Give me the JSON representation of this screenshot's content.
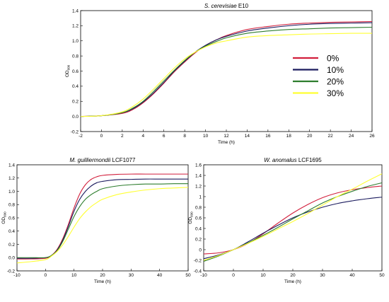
{
  "legend": [
    {
      "label": "0%",
      "color": "#d21f3c"
    },
    {
      "label": "10%",
      "color": "#1b1b5e"
    },
    {
      "label": "20%",
      "color": "#2e7d2e"
    },
    {
      "label": "30%",
      "color": "#ffff33"
    }
  ],
  "chart_data": [
    {
      "type": "line",
      "title": "E10",
      "title_species": "S. cerevisiae",
      "xlabel": "Time (h)",
      "ylabel_main": "OD",
      "ylabel_sub": "600",
      "xlim": [
        -2,
        26
      ],
      "ylim": [
        -0.2,
        1.4
      ],
      "xticks": [
        -2,
        0,
        2,
        4,
        6,
        8,
        10,
        12,
        14,
        16,
        18,
        20,
        22,
        24,
        26
      ],
      "yticks": [
        -0.2,
        0.0,
        0.2,
        0.4,
        0.6,
        0.8,
        1.0,
        1.2,
        1.4
      ],
      "ytick_labels": [
        "-0.2",
        "0.0",
        "0.2",
        "0.4",
        "0.6",
        "0.8",
        "1.0",
        "1.2",
        "1.4"
      ],
      "x": [
        -2,
        0,
        2,
        3,
        4,
        5,
        6,
        7,
        8,
        9,
        10,
        11,
        12,
        14,
        16,
        18,
        20,
        22,
        24,
        26
      ],
      "series": [
        {
          "color": "#d21f3c",
          "values": [
            0.0,
            0.01,
            0.04,
            0.09,
            0.18,
            0.3,
            0.44,
            0.59,
            0.72,
            0.84,
            0.94,
            1.01,
            1.07,
            1.15,
            1.19,
            1.22,
            1.235,
            1.245,
            1.25,
            1.255
          ]
        },
        {
          "color": "#1b1b5e",
          "values": [
            0.0,
            0.01,
            0.05,
            0.1,
            0.19,
            0.31,
            0.45,
            0.6,
            0.73,
            0.85,
            0.94,
            1.01,
            1.06,
            1.13,
            1.17,
            1.2,
            1.22,
            1.23,
            1.235,
            1.24
          ]
        },
        {
          "color": "#2e7d2e",
          "values": [
            0.0,
            0.01,
            0.05,
            0.11,
            0.2,
            0.33,
            0.47,
            0.61,
            0.74,
            0.85,
            0.93,
            0.99,
            1.04,
            1.1,
            1.13,
            1.15,
            1.16,
            1.17,
            1.175,
            1.18
          ]
        },
        {
          "color": "#ffff33",
          "values": [
            0.0,
            0.01,
            0.06,
            0.13,
            0.23,
            0.36,
            0.5,
            0.64,
            0.76,
            0.85,
            0.92,
            0.97,
            1.0,
            1.05,
            1.07,
            1.08,
            1.09,
            1.095,
            1.1,
            1.1
          ]
        }
      ]
    },
    {
      "type": "line",
      "title": "LCF1077",
      "title_species": "M. guilliermondii",
      "xlabel": "Time (h)",
      "ylabel_main": "OD",
      "ylabel_sub": "600",
      "xlim": [
        -10,
        50
      ],
      "ylim": [
        -0.2,
        1.4
      ],
      "xticks": [
        -10,
        0,
        10,
        20,
        30,
        40,
        50
      ],
      "yticks": [
        -0.2,
        0.0,
        0.2,
        0.4,
        0.6,
        0.8,
        1.0,
        1.2,
        1.4
      ],
      "ytick_labels": [
        "-0.2",
        "0.0",
        "0.2",
        "0.4",
        "0.6",
        "0.8",
        "1.0",
        "1.2",
        "1.4"
      ],
      "x": [
        -10,
        -5,
        0,
        2,
        4,
        6,
        8,
        10,
        12,
        14,
        16,
        18,
        20,
        25,
        30,
        35,
        40,
        45,
        50
      ],
      "series": [
        {
          "color": "#d21f3c",
          "values": [
            -0.02,
            -0.02,
            -0.01,
            0.03,
            0.12,
            0.28,
            0.5,
            0.75,
            0.96,
            1.1,
            1.18,
            1.22,
            1.24,
            1.255,
            1.26,
            1.26,
            1.26,
            1.26,
            1.26
          ]
        },
        {
          "color": "#1b1b5e",
          "values": [
            -0.01,
            -0.01,
            0.0,
            0.03,
            0.11,
            0.26,
            0.47,
            0.7,
            0.88,
            1.0,
            1.08,
            1.13,
            1.15,
            1.175,
            1.18,
            1.185,
            1.185,
            1.185,
            1.185
          ]
        },
        {
          "color": "#2e7d2e",
          "values": [
            0.0,
            0.0,
            0.0,
            0.03,
            0.1,
            0.24,
            0.43,
            0.62,
            0.77,
            0.88,
            0.95,
            1.0,
            1.04,
            1.08,
            1.1,
            1.11,
            1.11,
            1.115,
            1.115
          ]
        },
        {
          "color": "#ffff33",
          "values": [
            -0.08,
            -0.06,
            -0.03,
            0.02,
            0.09,
            0.19,
            0.32,
            0.46,
            0.59,
            0.69,
            0.77,
            0.83,
            0.88,
            0.95,
            0.99,
            1.02,
            1.04,
            1.05,
            1.06
          ]
        }
      ]
    },
    {
      "type": "line",
      "title": "LCF1695",
      "title_species": "W. anomalus",
      "xlabel": "Time (h)",
      "ylabel_main": "OD",
      "ylabel_sub": "600",
      "xlim": [
        -10,
        50
      ],
      "ylim": [
        -0.4,
        1.6
      ],
      "xticks": [
        -10,
        0,
        10,
        20,
        30,
        40,
        50
      ],
      "yticks": [
        -0.4,
        -0.2,
        0.0,
        0.2,
        0.4,
        0.6,
        0.8,
        1.0,
        1.2,
        1.4,
        1.6
      ],
      "ytick_labels": [
        "-0.4",
        "-0.2",
        "0",
        "0.2",
        "0.4",
        "0.6",
        "0.8",
        "1",
        "1.2",
        "1.4",
        "1.6"
      ],
      "x": [
        -10,
        -5,
        0,
        5,
        10,
        15,
        20,
        25,
        30,
        35,
        40,
        45,
        50
      ],
      "series": [
        {
          "color": "#d21f3c",
          "values": [
            -0.08,
            -0.06,
            0.0,
            0.12,
            0.3,
            0.5,
            0.69,
            0.85,
            0.98,
            1.07,
            1.13,
            1.17,
            1.2
          ]
        },
        {
          "color": "#1b1b5e",
          "values": [
            -0.17,
            -0.1,
            0.0,
            0.15,
            0.31,
            0.46,
            0.6,
            0.71,
            0.8,
            0.87,
            0.92,
            0.96,
            0.99
          ]
        },
        {
          "color": "#2e7d2e",
          "values": [
            -0.22,
            -0.12,
            0.0,
            0.13,
            0.27,
            0.42,
            0.58,
            0.73,
            0.88,
            1.0,
            1.1,
            1.19,
            1.26
          ]
        },
        {
          "color": "#ffff33",
          "values": [
            -0.2,
            -0.11,
            0.0,
            0.12,
            0.25,
            0.39,
            0.53,
            0.68,
            0.84,
            1.0,
            1.14,
            1.29,
            1.43
          ]
        }
      ]
    }
  ]
}
